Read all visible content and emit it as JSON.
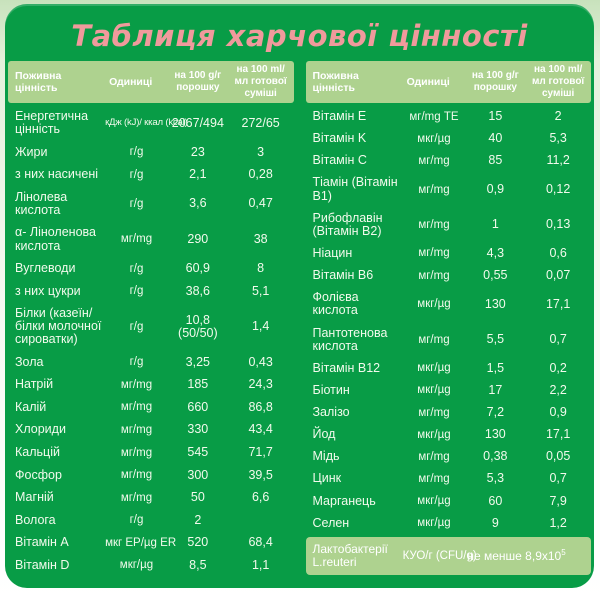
{
  "title": "Таблиця харчової цінності",
  "colors": {
    "panel_green": "#089c46",
    "header_light_green": "#aed28f",
    "title_pink": "#f09a9c",
    "text_white": "#f2faec"
  },
  "tables": [
    {
      "columns": [
        "Поживна цінність",
        "Одиниці",
        "на 100 g/г порошку",
        "на 100 ml/мл готової суміші"
      ],
      "rows": [
        {
          "name": "Енергетична цінність",
          "unit": "кДж (kJ)/ ккал (kcal)",
          "per100g": "2067/494",
          "per100ml": "272/65"
        },
        {
          "name": "Жири",
          "unit": "г/g",
          "per100g": "23",
          "per100ml": "3"
        },
        {
          "name": "з них насичені",
          "unit": "г/g",
          "per100g": "2,1",
          "per100ml": "0,28"
        },
        {
          "name": "Лінолева кислота",
          "unit": "г/g",
          "per100g": "3,6",
          "per100ml": "0,47"
        },
        {
          "name": "α- Ліноленова кислота",
          "unit": "мг/mg",
          "per100g": "290",
          "per100ml": "38"
        },
        {
          "name": "Вуглеводи",
          "unit": "г/g",
          "per100g": "60,9",
          "per100ml": "8"
        },
        {
          "name": "з них цукри",
          "unit": "г/g",
          "per100g": "38,6",
          "per100ml": "5,1"
        },
        {
          "name": "Білки (казеїн/білки молочної сироватки)",
          "unit": "г/g",
          "per100g": "10,8 (50/50)",
          "per100ml": "1,4"
        },
        {
          "name": "Зола",
          "unit": "г/g",
          "per100g": "3,25",
          "per100ml": "0,43"
        },
        {
          "name": "Натрій",
          "unit": "мг/mg",
          "per100g": "185",
          "per100ml": "24,3"
        },
        {
          "name": "Калій",
          "unit": "мг/mg",
          "per100g": "660",
          "per100ml": "86,8"
        },
        {
          "name": "Хлориди",
          "unit": "мг/mg",
          "per100g": "330",
          "per100ml": "43,4"
        },
        {
          "name": "Кальцій",
          "unit": "мг/mg",
          "per100g": "545",
          "per100ml": "71,7"
        },
        {
          "name": "Фосфор",
          "unit": "мг/mg",
          "per100g": "300",
          "per100ml": "39,5"
        },
        {
          "name": "Магній",
          "unit": "мг/mg",
          "per100g": "50",
          "per100ml": "6,6"
        },
        {
          "name": "Волога",
          "unit": "г/g",
          "per100g": "2",
          "per100ml": ""
        },
        {
          "name": "Вітамін A",
          "unit": "мкг ЕР/µg ER",
          "per100g": "520",
          "per100ml": "68,4"
        },
        {
          "name": "Вітамін D",
          "unit": "мкг/µg",
          "per100g": "8,5",
          "per100ml": "1,1"
        }
      ]
    },
    {
      "columns": [
        "Поживна цінність",
        "Одиниці",
        "на 100 g/г порошку",
        "на 100 ml/мл готової суміші"
      ],
      "rows": [
        {
          "name": "Вітамін E",
          "unit": "мг/mg ТЕ",
          "per100g": "15",
          "per100ml": "2"
        },
        {
          "name": "Вітамін K",
          "unit": "мкг/µg",
          "per100g": "40",
          "per100ml": "5,3"
        },
        {
          "name": "Вітамін C",
          "unit": "мг/mg",
          "per100g": "85",
          "per100ml": "11,2"
        },
        {
          "name": "Тіамін (Вітамін B1)",
          "unit": "мг/mg",
          "per100g": "0,9",
          "per100ml": "0,12"
        },
        {
          "name": "Рибофлавін (Вітамін B2)",
          "unit": "мг/mg",
          "per100g": "1",
          "per100ml": "0,13"
        },
        {
          "name": "Ніацин",
          "unit": "мг/mg",
          "per100g": "4,3",
          "per100ml": "0,6"
        },
        {
          "name": "Вітамін B6",
          "unit": "мг/mg",
          "per100g": "0,55",
          "per100ml": "0,07"
        },
        {
          "name": "Фолієва кислота",
          "unit": "мкг/µg",
          "per100g": "130",
          "per100ml": "17,1"
        },
        {
          "name": "Пантотенова кислота",
          "unit": "мг/mg",
          "per100g": "5,5",
          "per100ml": "0,7"
        },
        {
          "name": "Вітамін B12",
          "unit": "мкг/µg",
          "per100g": "1,5",
          "per100ml": "0,2"
        },
        {
          "name": "Біотин",
          "unit": "мкг/µg",
          "per100g": "17",
          "per100ml": "2,2"
        },
        {
          "name": "Залізо",
          "unit": "мг/mg",
          "per100g": "7,2",
          "per100ml": "0,9"
        },
        {
          "name": "Йод",
          "unit": "мкг/µg",
          "per100g": "130",
          "per100ml": "17,1"
        },
        {
          "name": "Мідь",
          "unit": "мг/mg",
          "per100g": "0,38",
          "per100ml": "0,05"
        },
        {
          "name": "Цинк",
          "unit": "мг/mg",
          "per100g": "5,3",
          "per100ml": "0,7"
        },
        {
          "name": "Марганець",
          "unit": "мкг/µg",
          "per100g": "60",
          "per100ml": "7,9"
        },
        {
          "name": "Селен",
          "unit": "мкг/µg",
          "per100g": "9",
          "per100ml": "1,2"
        }
      ],
      "probiotic_row": {
        "name": "Лактобактерії L.reuteri",
        "unit": "КУО/г (CFU/g)",
        "value": "не менше 8,9x10",
        "value_sup": "5"
      }
    }
  ]
}
